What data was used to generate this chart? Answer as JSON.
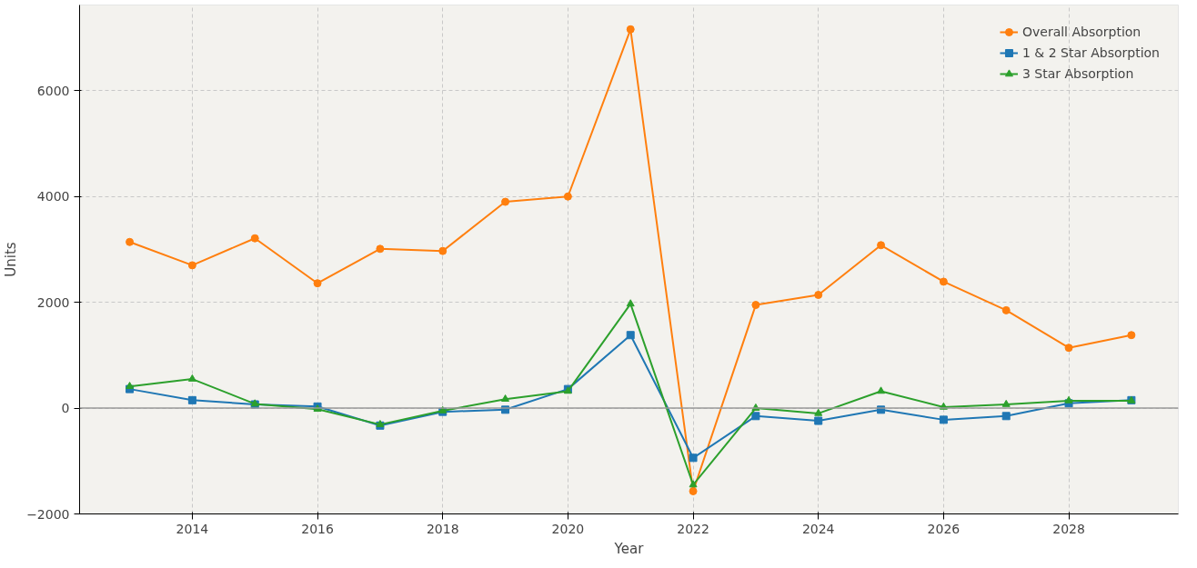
{
  "chart_data": {
    "type": "line",
    "xlabel": "Year",
    "ylabel": "Units",
    "x": [
      2013,
      2014,
      2015,
      2016,
      2017,
      2018,
      2019,
      2020,
      2021,
      2022,
      2023,
      2024,
      2025,
      2026,
      2027,
      2028,
      2029
    ],
    "series": [
      {
        "name": "Overall Absorption",
        "color": "#ff7f0e",
        "marker": "circle",
        "values": [
          3140,
          2700,
          3210,
          2360,
          3010,
          2970,
          3900,
          4000,
          7160,
          -1570,
          1950,
          2140,
          3080,
          2390,
          1850,
          1140,
          1380
        ]
      },
      {
        "name": "1 & 2 Star Absorption",
        "color": "#1f77b4",
        "marker": "square",
        "values": [
          360,
          150,
          70,
          30,
          -330,
          -70,
          -30,
          360,
          1380,
          -940,
          -150,
          -240,
          -30,
          -220,
          -150,
          90,
          150
        ]
      },
      {
        "name": "3 Star Absorption",
        "color": "#2ca02c",
        "marker": "triangle",
        "values": [
          410,
          550,
          80,
          -20,
          -310,
          -50,
          170,
          320,
          1970,
          -1450,
          0,
          -100,
          320,
          20,
          70,
          140,
          140
        ]
      }
    ],
    "xlim": [
      2012.2,
      2029.75
    ],
    "ylim": [
      -2000,
      7620
    ],
    "xticks": [
      2014,
      2016,
      2018,
      2020,
      2022,
      2024,
      2026,
      2028
    ],
    "yticks": [
      -2000,
      0,
      2000,
      4000,
      6000
    ],
    "ref_lines": [
      {
        "axis": "y",
        "value": 0,
        "color": "#999999"
      }
    ],
    "grid": true,
    "legend": "top right",
    "line_style": "solid"
  }
}
